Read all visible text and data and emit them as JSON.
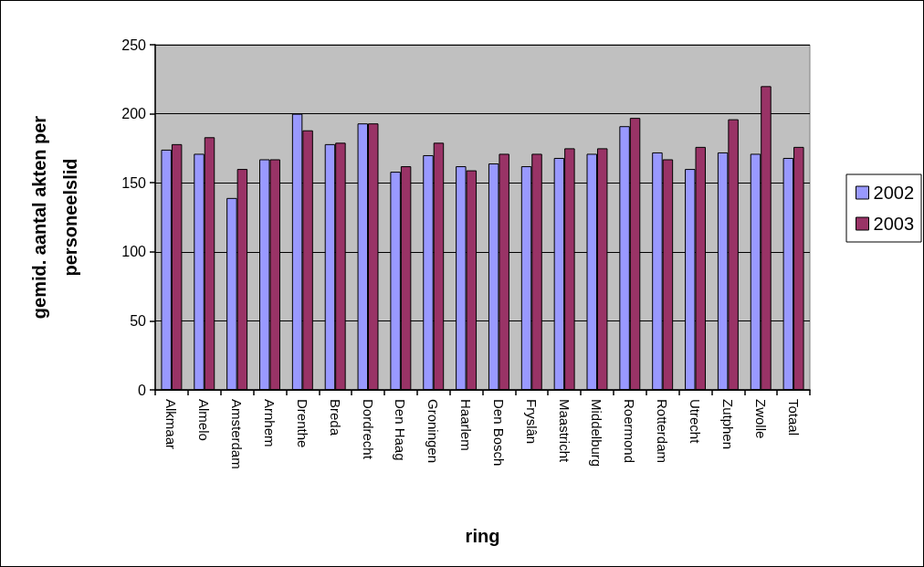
{
  "chart_data": {
    "type": "bar",
    "categories": [
      "Alkmaar",
      "Almelo",
      "Amsterdam",
      "Arnhem",
      "Drenthe",
      "Breda",
      "Dordrecht",
      "Den Haag",
      "Groningen",
      "Haarlem",
      "Den Bosch",
      "Fryslân",
      "Maastricht",
      "Middelburg",
      "Roermond",
      "Rotterdam",
      "Utrecht",
      "Zutphen",
      "Zwolle",
      "Totaal"
    ],
    "series": [
      {
        "name": "2002",
        "color": "#9999ff",
        "values": [
          174,
          171,
          139,
          167,
          200,
          178,
          193,
          158,
          170,
          162,
          164,
          162,
          168,
          171,
          191,
          172,
          160,
          172,
          171,
          168
        ]
      },
      {
        "name": "2003",
        "color": "#993366",
        "values": [
          178,
          183,
          160,
          167,
          188,
          179,
          193,
          162,
          179,
          159,
          171,
          171,
          175,
          175,
          197,
          167,
          176,
          196,
          220,
          176
        ]
      }
    ],
    "xlabel": "ring",
    "ylabel": "gemid. aantal akten per personeelslid",
    "ylim": [
      0,
      250
    ],
    "yticks": [
      0,
      50,
      100,
      150,
      200,
      250
    ],
    "grid": "y",
    "legend": "right"
  }
}
